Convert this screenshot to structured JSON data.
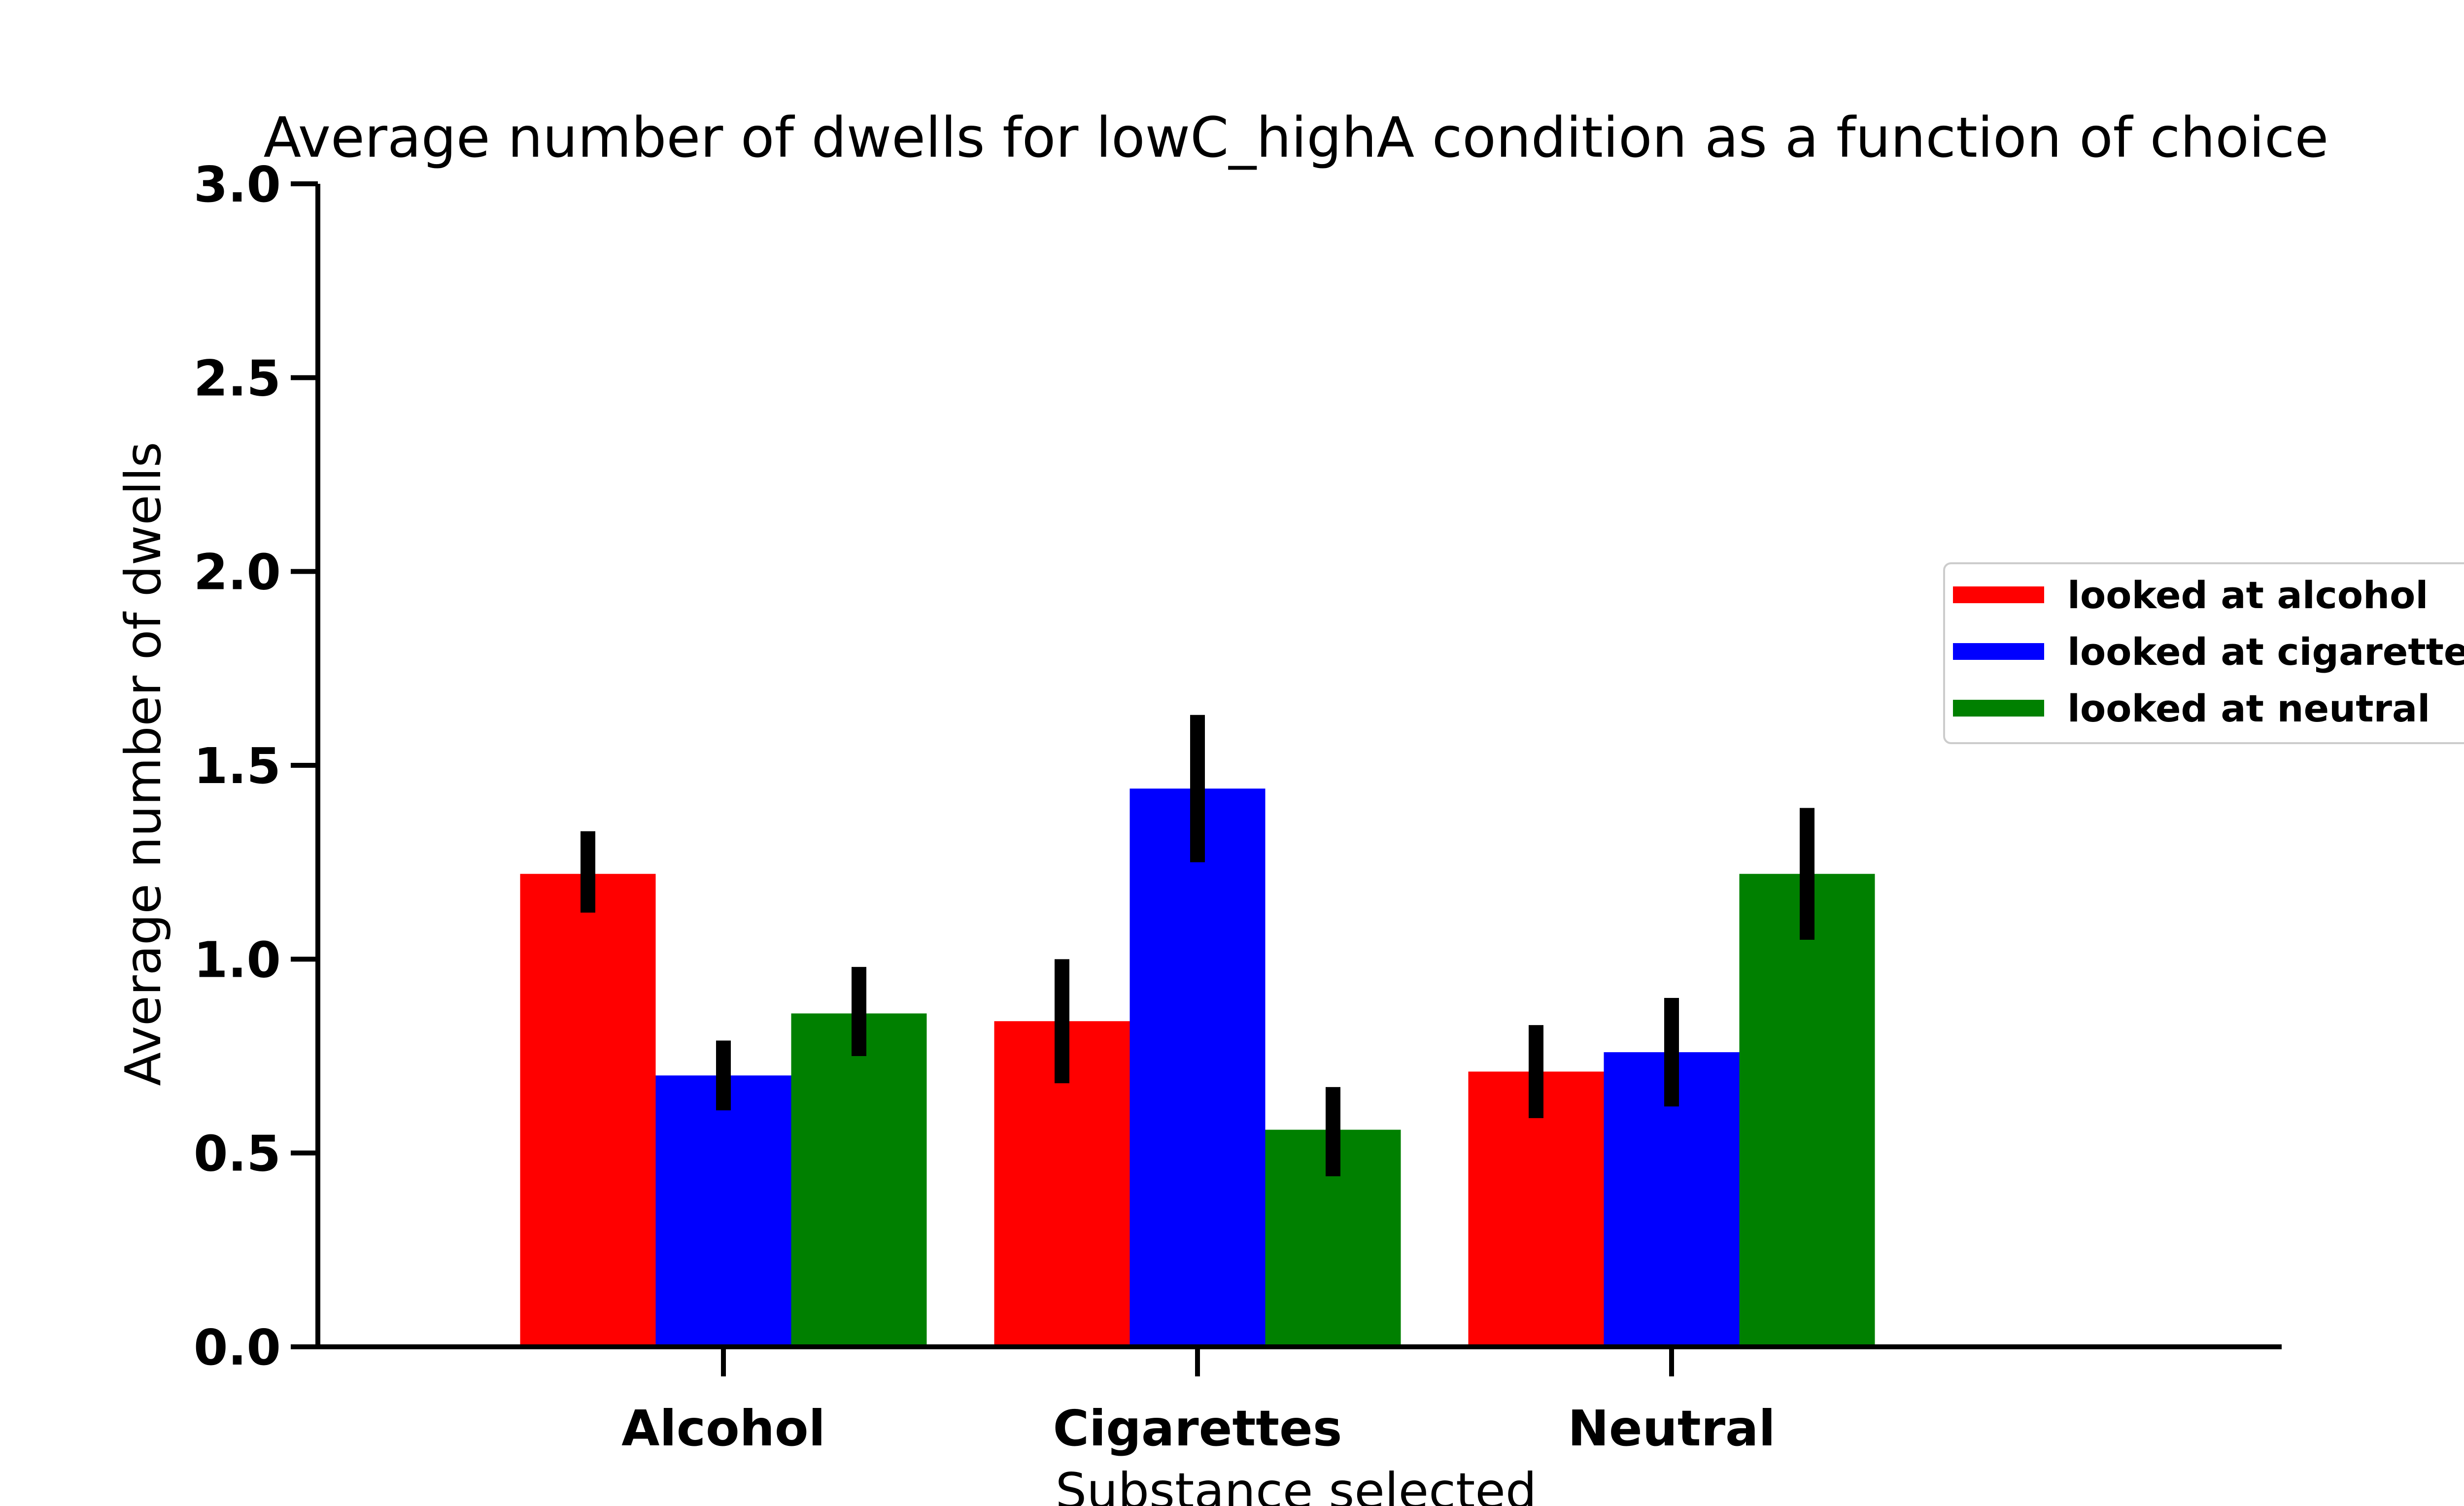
{
  "chart_data": {
    "type": "bar",
    "title": "Average number of dwells for lowC_highA condition as a function of choice",
    "xlabel": "Substance selected",
    "ylabel": "Average number of dwells",
    "categories": [
      "Alcohol",
      "Cigarettes",
      "Neutral"
    ],
    "ylim": [
      0,
      3.0
    ],
    "yticks": [
      "0.0",
      "0.5",
      "1.0",
      "1.5",
      "2.0",
      "2.5",
      "3.0"
    ],
    "grid": false,
    "legend_position": "right",
    "series": [
      {
        "name": "looked at alcohol",
        "color": "#ff0000",
        "values": [
          1.22,
          0.84,
          0.71
        ],
        "error_low": [
          1.12,
          0.68,
          0.59
        ],
        "error_high": [
          1.33,
          1.0,
          0.83
        ]
      },
      {
        "name": "looked at cigarettes",
        "color": "#0000ff",
        "values": [
          0.7,
          1.44,
          0.76
        ],
        "error_low": [
          0.61,
          1.25,
          0.62
        ],
        "error_high": [
          0.79,
          1.63,
          0.9
        ]
      },
      {
        "name": "looked at neutral",
        "color": "#008000",
        "values": [
          0.86,
          0.56,
          1.22
        ],
        "error_low": [
          0.75,
          0.44,
          1.05
        ],
        "error_high": [
          0.98,
          0.67,
          1.39
        ]
      }
    ]
  }
}
